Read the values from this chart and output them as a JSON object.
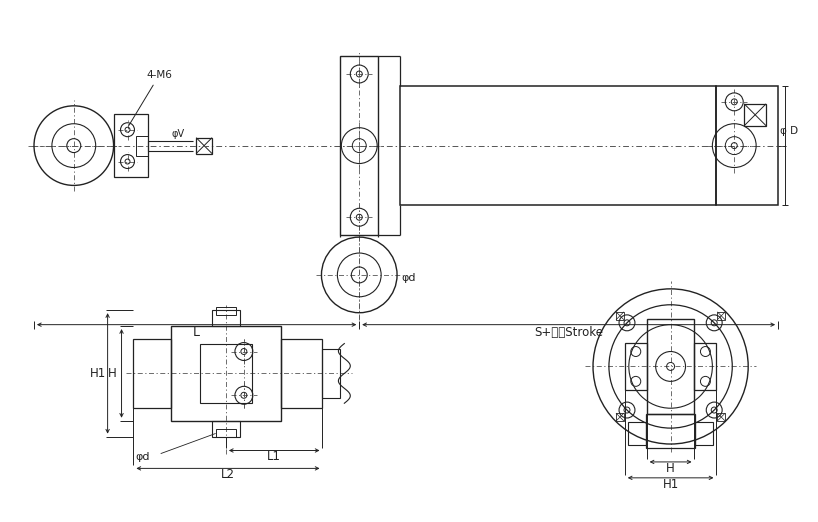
{
  "bg_color": "#ffffff",
  "line_color": "#222222",
  "dim_color": "#222222",
  "dash_color": "#555555",
  "fig_width": 8.18,
  "fig_height": 5.22,
  "labels": {
    "four_m6": "4-M6",
    "phi_v": "φV",
    "phi_d_top": "φd",
    "phi_D": "φ D",
    "L": "L",
    "S_stroke": "S+行程Stroke",
    "H": "H",
    "H1": "H1",
    "L1": "L1",
    "L2": "L2",
    "phi_d_bot": "φd"
  }
}
